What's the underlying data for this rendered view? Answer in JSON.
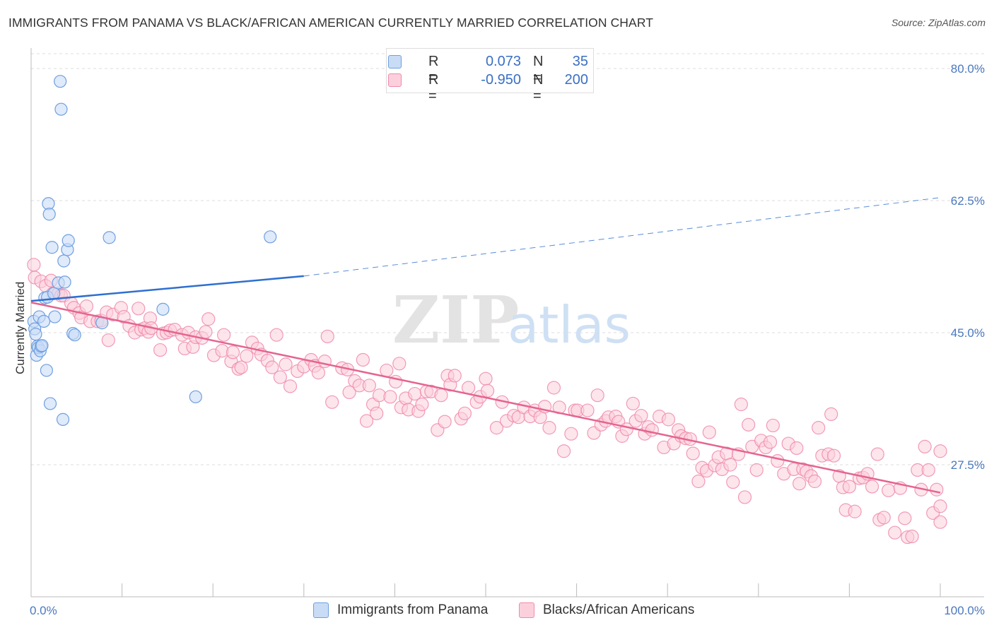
{
  "title": "IMMIGRANTS FROM PANAMA VS BLACK/AFRICAN AMERICAN CURRENTLY MARRIED CORRELATION CHART",
  "source": "Source: ZipAtlas.com",
  "watermark": {
    "zip": "ZIP",
    "atlas": "atlas"
  },
  "colors": {
    "blue": "#6f9fe0",
    "blue_fill": "#c9dcf6",
    "blue_line": "#2f6fd0",
    "pink": "#f08aaa",
    "pink_fill": "#fbd0dc",
    "pink_line": "#e5648f",
    "tick_text": "#4a78c0",
    "grid": "#dddddd"
  },
  "legend": {
    "rows": [
      {
        "r_label": "R =",
        "r_value": "0.073",
        "n_label": "N =",
        "n_value": "35"
      },
      {
        "r_label": "R =",
        "r_value": "-0.950",
        "n_label": "N =",
        "n_value": "200"
      }
    ]
  },
  "bottom_legend": [
    "Immigrants from Panama",
    "Blacks/African Americans"
  ],
  "chart_data": {
    "type": "scatter",
    "title": "IMMIGRANTS FROM PANAMA VS BLACK/AFRICAN AMERICAN CURRENTLY MARRIED CORRELATION CHART",
    "xlabel": "",
    "ylabel": "Currently Married",
    "xlim": [
      0,
      100
    ],
    "ylim": [
      10,
      82.5
    ],
    "x_tick_labels": [
      "0.0%",
      "100.0%"
    ],
    "y_ticks": [
      27.5,
      45.0,
      62.5,
      80.0
    ],
    "y_tick_labels": [
      "27.5%",
      "45.0%",
      "62.5%",
      "80.0%"
    ],
    "grid": true,
    "series": [
      {
        "name": "Immigrants from Panama",
        "R": 0.073,
        "N": 35,
        "trend": {
          "x": [
            0,
            30
          ],
          "y": [
            49.2,
            52.5
          ],
          "dashed_x": [
            30,
            100
          ],
          "dashed_y": [
            52.5,
            62.9
          ]
        },
        "points": [
          [
            0.3,
            46.5
          ],
          [
            0.4,
            45.5
          ],
          [
            0.5,
            44.8
          ],
          [
            0.6,
            42.0
          ],
          [
            0.7,
            43.2
          ],
          [
            0.8,
            43.0
          ],
          [
            0.9,
            47.1
          ],
          [
            1.0,
            42.6
          ],
          [
            1.1,
            43.2
          ],
          [
            1.2,
            43.3
          ],
          [
            1.4,
            46.5
          ],
          [
            1.5,
            49.6
          ],
          [
            1.7,
            40.0
          ],
          [
            1.8,
            49.7
          ],
          [
            1.9,
            62.1
          ],
          [
            2.0,
            60.7
          ],
          [
            2.1,
            35.6
          ],
          [
            2.3,
            56.3
          ],
          [
            2.5,
            50.2
          ],
          [
            2.6,
            47.1
          ],
          [
            3.0,
            51.6
          ],
          [
            3.2,
            78.3
          ],
          [
            3.3,
            74.6
          ],
          [
            3.5,
            33.5
          ],
          [
            3.6,
            54.5
          ],
          [
            3.7,
            51.7
          ],
          [
            4.0,
            56.0
          ],
          [
            4.1,
            57.2
          ],
          [
            4.6,
            44.9
          ],
          [
            4.8,
            44.7
          ],
          [
            7.8,
            46.3
          ],
          [
            8.6,
            57.6
          ],
          [
            14.5,
            48.1
          ],
          [
            18.1,
            36.5
          ],
          [
            26.3,
            57.7
          ]
        ]
      },
      {
        "name": "Blacks/African Americans",
        "R": -0.95,
        "N": 200,
        "trend": {
          "x": [
            0,
            100
          ],
          "y": [
            49.0,
            23.8
          ]
        },
        "points": [
          [
            0.3,
            54.0
          ],
          [
            0.4,
            52.3
          ],
          [
            1.1,
            51.8
          ],
          [
            1.6,
            51.2
          ],
          [
            2.2,
            51.9
          ],
          [
            2.4,
            50.2
          ],
          [
            3.0,
            50.2
          ],
          [
            3.3,
            49.9
          ],
          [
            3.6,
            49.9
          ],
          [
            4.4,
            48.9
          ],
          [
            4.7,
            48.3
          ],
          [
            5.3,
            47.6
          ],
          [
            5.5,
            47.0
          ],
          [
            6.1,
            48.5
          ],
          [
            6.5,
            46.5
          ],
          [
            7.3,
            46.5
          ],
          [
            7.7,
            46.6
          ],
          [
            8.3,
            47.7
          ],
          [
            8.5,
            44.0
          ],
          [
            9.0,
            47.4
          ],
          [
            9.9,
            48.3
          ],
          [
            10.2,
            47.1
          ],
          [
            10.8,
            45.9
          ],
          [
            11.4,
            45.0
          ],
          [
            11.8,
            48.2
          ],
          [
            12.1,
            45.4
          ],
          [
            12.5,
            45.6
          ],
          [
            12.9,
            45.1
          ],
          [
            13.1,
            46.9
          ],
          [
            13.2,
            45.6
          ],
          [
            14.2,
            42.7
          ],
          [
            14.5,
            44.9
          ],
          [
            14.9,
            45.0
          ],
          [
            15.3,
            45.3
          ],
          [
            15.8,
            45.4
          ],
          [
            16.6,
            44.7
          ],
          [
            16.9,
            42.9
          ],
          [
            17.3,
            45.0
          ],
          [
            17.8,
            43.1
          ],
          [
            18.1,
            44.4
          ],
          [
            18.8,
            44.3
          ],
          [
            19.2,
            45.1
          ],
          [
            19.5,
            46.8
          ],
          [
            20.1,
            42.0
          ],
          [
            21.0,
            42.6
          ],
          [
            21.2,
            44.7
          ],
          [
            22.0,
            41.2
          ],
          [
            22.2,
            42.4
          ],
          [
            22.8,
            40.2
          ],
          [
            23.1,
            40.4
          ],
          [
            23.7,
            41.9
          ],
          [
            24.3,
            43.7
          ],
          [
            24.9,
            42.9
          ],
          [
            25.3,
            42.1
          ],
          [
            26.0,
            41.3
          ],
          [
            26.5,
            40.4
          ],
          [
            27.0,
            44.7
          ],
          [
            27.4,
            39.1
          ],
          [
            28.0,
            40.8
          ],
          [
            28.5,
            37.9
          ],
          [
            29.3,
            39.9
          ],
          [
            30.0,
            40.5
          ],
          [
            30.8,
            41.4
          ],
          [
            31.2,
            40.6
          ],
          [
            31.6,
            39.7
          ],
          [
            32.3,
            41.2
          ],
          [
            32.6,
            44.5
          ],
          [
            33.1,
            35.8
          ],
          [
            34.2,
            40.3
          ],
          [
            34.8,
            40.1
          ],
          [
            35.0,
            37.1
          ],
          [
            35.6,
            38.6
          ],
          [
            36.1,
            38.0
          ],
          [
            36.5,
            41.4
          ],
          [
            36.9,
            33.3
          ],
          [
            37.2,
            38.0
          ],
          [
            37.6,
            35.5
          ],
          [
            38.0,
            34.3
          ],
          [
            38.3,
            36.7
          ],
          [
            39.1,
            40.0
          ],
          [
            39.5,
            36.5
          ],
          [
            40.1,
            38.5
          ],
          [
            40.5,
            40.9
          ],
          [
            40.7,
            35.1
          ],
          [
            41.2,
            36.3
          ],
          [
            41.5,
            34.8
          ],
          [
            42.2,
            36.9
          ],
          [
            42.6,
            34.6
          ],
          [
            43.0,
            35.5
          ],
          [
            43.5,
            37.2
          ],
          [
            44.0,
            37.2
          ],
          [
            44.7,
            32.1
          ],
          [
            45.1,
            36.7
          ],
          [
            45.5,
            33.2
          ],
          [
            45.8,
            39.3
          ],
          [
            46.1,
            38.1
          ],
          [
            46.6,
            39.3
          ],
          [
            47.3,
            33.6
          ],
          [
            47.7,
            34.3
          ],
          [
            48.1,
            37.7
          ],
          [
            49.0,
            35.8
          ],
          [
            49.4,
            36.5
          ],
          [
            50.0,
            38.9
          ],
          [
            50.2,
            37.3
          ],
          [
            51.2,
            32.4
          ],
          [
            51.8,
            35.8
          ],
          [
            52.3,
            33.3
          ],
          [
            53.1,
            34.0
          ],
          [
            53.6,
            33.8
          ],
          [
            54.2,
            35.1
          ],
          [
            54.9,
            33.9
          ],
          [
            55.4,
            34.7
          ],
          [
            56.0,
            33.8
          ],
          [
            56.5,
            35.2
          ],
          [
            57.0,
            32.4
          ],
          [
            57.5,
            37.7
          ],
          [
            58.1,
            35.1
          ],
          [
            58.6,
            29.3
          ],
          [
            59.4,
            31.6
          ],
          [
            59.8,
            34.7
          ],
          [
            60.1,
            34.7
          ],
          [
            61.2,
            34.7
          ],
          [
            61.9,
            31.7
          ],
          [
            62.3,
            36.7
          ],
          [
            62.7,
            32.8
          ],
          [
            63.2,
            33.3
          ],
          [
            63.5,
            33.8
          ],
          [
            64.3,
            33.9
          ],
          [
            64.6,
            33.2
          ],
          [
            65.0,
            31.3
          ],
          [
            65.5,
            32.2
          ],
          [
            66.2,
            35.6
          ],
          [
            66.5,
            33.3
          ],
          [
            67.1,
            34.0
          ],
          [
            67.5,
            31.6
          ],
          [
            67.9,
            32.5
          ],
          [
            68.3,
            32.1
          ],
          [
            69.1,
            33.9
          ],
          [
            69.6,
            29.8
          ],
          [
            70.1,
            33.5
          ],
          [
            70.7,
            30.3
          ],
          [
            71.2,
            32.1
          ],
          [
            71.5,
            31.3
          ],
          [
            72.0,
            31.0
          ],
          [
            72.5,
            30.9
          ],
          [
            72.8,
            29.0
          ],
          [
            73.4,
            25.3
          ],
          [
            73.8,
            27.1
          ],
          [
            74.3,
            26.7
          ],
          [
            74.6,
            31.8
          ],
          [
            75.2,
            27.4
          ],
          [
            75.6,
            28.5
          ],
          [
            76.0,
            26.9
          ],
          [
            76.5,
            29.0
          ],
          [
            76.9,
            27.5
          ],
          [
            77.2,
            25.2
          ],
          [
            77.8,
            28.9
          ],
          [
            78.1,
            35.5
          ],
          [
            78.5,
            23.2
          ],
          [
            78.9,
            32.8
          ],
          [
            79.3,
            29.9
          ],
          [
            79.8,
            26.8
          ],
          [
            80.3,
            30.7
          ],
          [
            80.8,
            29.8
          ],
          [
            81.3,
            30.5
          ],
          [
            81.6,
            32.7
          ],
          [
            82.1,
            28.0
          ],
          [
            82.8,
            26.3
          ],
          [
            83.3,
            30.3
          ],
          [
            83.9,
            26.9
          ],
          [
            84.2,
            29.7
          ],
          [
            84.5,
            25.0
          ],
          [
            84.9,
            26.9
          ],
          [
            85.3,
            26.6
          ],
          [
            85.8,
            26.0
          ],
          [
            86.2,
            25.3
          ],
          [
            86.6,
            32.4
          ],
          [
            87.0,
            28.7
          ],
          [
            87.7,
            28.9
          ],
          [
            88.0,
            34.2
          ],
          [
            88.3,
            28.7
          ],
          [
            88.9,
            26.0
          ],
          [
            89.3,
            24.5
          ],
          [
            89.6,
            21.5
          ],
          [
            90.0,
            24.6
          ],
          [
            90.6,
            21.3
          ],
          [
            91.1,
            25.7
          ],
          [
            91.5,
            25.8
          ],
          [
            92.0,
            26.3
          ],
          [
            92.5,
            24.6
          ],
          [
            93.1,
            28.9
          ],
          [
            93.3,
            20.2
          ],
          [
            93.8,
            20.5
          ],
          [
            94.3,
            24.1
          ],
          [
            95.0,
            18.5
          ],
          [
            95.6,
            24.4
          ],
          [
            96.1,
            20.4
          ],
          [
            96.4,
            17.9
          ],
          [
            96.9,
            18.0
          ],
          [
            97.5,
            26.8
          ],
          [
            97.9,
            24.2
          ],
          [
            98.3,
            29.9
          ],
          [
            98.7,
            26.8
          ],
          [
            99.2,
            21.1
          ],
          [
            99.6,
            24.2
          ],
          [
            100.0,
            29.3
          ],
          [
            100.0,
            22.0
          ],
          [
            100.0,
            19.9
          ]
        ]
      }
    ]
  }
}
